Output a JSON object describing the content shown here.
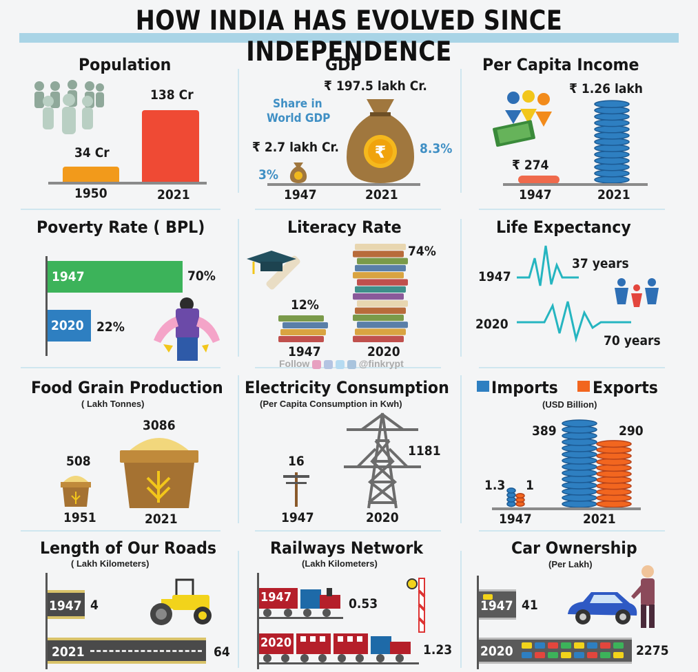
{
  "title": "HOW INDIA HAS EVOLVED SINCE INDEPENDENCE",
  "colors": {
    "accent_blue": "#2e7fc1",
    "orange": "#f29a1b",
    "red": "#ef4a34",
    "green": "#3cb35a",
    "underline": "#a9d4e6"
  },
  "population": {
    "heading": "Population",
    "val_a": "34 Cr",
    "val_b": "138 Cr",
    "year_a": "1950",
    "year_b": "2021",
    "icon": "people-group-icon"
  },
  "gdp": {
    "heading": "GDP",
    "share_label": "Share in World GDP",
    "share_line1": "Share in",
    "share_line2": "World GDP",
    "val_a": "₹ 2.7 lakh Cr.",
    "val_b": "₹ 197.5 lakh Cr.",
    "share_a": "3%",
    "share_b": "8.3%",
    "year_a": "1947",
    "year_b": "2021",
    "icon": "money-bag-icon"
  },
  "per_capita": {
    "heading": "Per Capita Income",
    "val_a": "₹ 274",
    "val_b": "₹ 1.26 lakh",
    "year_a": "1947",
    "year_b": "2021",
    "icon": "coins-stack-icon"
  },
  "poverty": {
    "heading": "Poverty Rate ( BPL)",
    "year_a": "1947",
    "val_a": "70%",
    "year_b": "2020",
    "val_b": "22%",
    "icon": "empty-pockets-person-icon"
  },
  "literacy": {
    "heading": "Literacy Rate",
    "val_a": "12%",
    "val_b": "74%",
    "year_a": "1947",
    "year_b": "2020",
    "icon": "books-stack-icon"
  },
  "life": {
    "heading": "Life Expectancy",
    "year_a": "1947",
    "val_a": "37 years",
    "year_b": "2020",
    "val_b": "70 years",
    "icon": "heartbeat-icon"
  },
  "follow": {
    "text": "Follow",
    "handle": "@finkrypt"
  },
  "food": {
    "heading": "Food Grain Production",
    "sub": "( Lakh Tonnes)",
    "val_a": "508",
    "val_b": "3086",
    "year_a": "1951",
    "year_b": "2021",
    "icon": "grain-sack-icon"
  },
  "electricity": {
    "heading": "Electricity Consumption",
    "sub": "(Per Capita Consumption in Kwh)",
    "val_a": "16",
    "val_b": "1181",
    "year_a": "1947",
    "year_b": "2020",
    "icon": "power-tower-icon"
  },
  "trade": {
    "legend_a": "Imports",
    "legend_b": "Exports",
    "sub": "(USD Billion)",
    "imp_a": "1.3",
    "exp_a": "1",
    "imp_b": "389",
    "exp_b": "290",
    "year_a": "1947",
    "year_b": "2021",
    "color_imports": "#2e7fc1",
    "color_exports": "#f2661f"
  },
  "roads": {
    "heading": "Length of Our Roads",
    "sub": "( Lakh Kilometers)",
    "year_a": "1947",
    "val_a": "4",
    "year_b": "2021",
    "val_b": "64",
    "icon": "road-roller-icon"
  },
  "rail": {
    "heading": "Railways Network",
    "sub": "(Lakh Kilometers)",
    "year_a": "1947",
    "val_a": "0.53",
    "year_b": "2020",
    "val_b": "1.23",
    "icon": "train-icon"
  },
  "cars": {
    "heading": "Car Ownership",
    "sub": "(Per Lakh)",
    "year_a": "1947",
    "val_a": "41",
    "year_b": "2020",
    "val_b": "2275",
    "icon": "car-icon"
  }
}
